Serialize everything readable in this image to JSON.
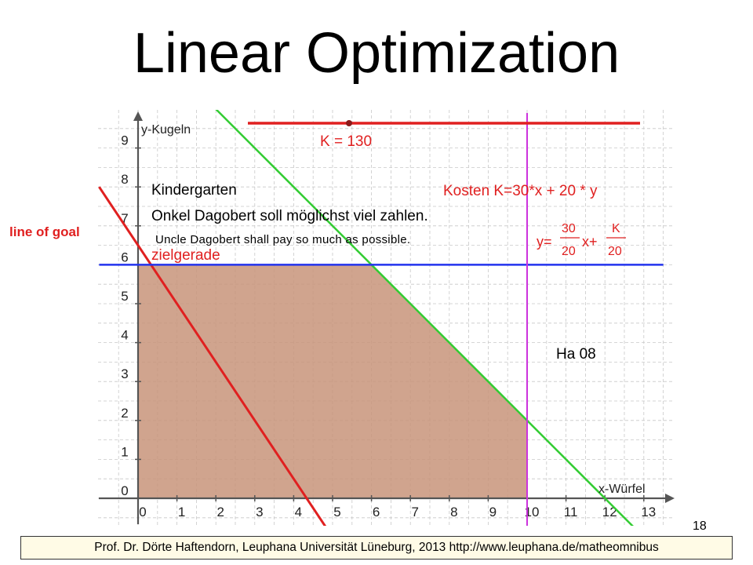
{
  "slide": {
    "title": "Linear Optimization",
    "side_label": "line of goal",
    "translation": "Uncle Dagobert shall pay so much as possible.",
    "page_number": "18",
    "footer": "Prof. Dr. Dörte Haftendorn, Leuphana Universität Lüneburg, 2013 http://www.leuphana.de/matheomnibus"
  },
  "graph": {
    "y_axis_label": "y-Kugeln",
    "x_axis_label": "x-Würfel",
    "slider_label": "K = 130",
    "heading": "Kindergarten",
    "subheading": "Onkel Dagobert soll möglichst viel zahlen.",
    "cost_formula": "Kosten K=30*x + 20 * y",
    "formula_y": "y=",
    "formula_num1": "30",
    "formula_den1": "20",
    "formula_x": "x+",
    "formula_num2": "K",
    "formula_den2": "20",
    "goal_line_label": "zielgerade",
    "author_tag": "Ha 08",
    "x_ticks": [
      "0",
      "1",
      "2",
      "3",
      "4",
      "5",
      "6",
      "7",
      "8",
      "9",
      "10",
      "11",
      "12",
      "13"
    ],
    "y_ticks": [
      "0",
      "1",
      "2",
      "3",
      "4",
      "5",
      "6",
      "7",
      "8",
      "9"
    ],
    "K": 130,
    "colors": {
      "feasible_fill": "#c8947a",
      "goal_line": "#e02020",
      "constraint_diagonal": "#33cc33",
      "constraint_horizontal": "#2233ee",
      "constraint_vertical": "#cc33dd",
      "grid": "#c8c8c8",
      "axis": "#555555"
    }
  },
  "chart_data": {
    "type": "line",
    "xlabel": "x-Würfel",
    "ylabel": "y-Kugeln",
    "xlim": [
      0,
      13
    ],
    "ylim": [
      0,
      9
    ],
    "feasible_region": [
      [
        0,
        0
      ],
      [
        10,
        0
      ],
      [
        10,
        2
      ],
      [
        6,
        6
      ],
      [
        0,
        6
      ]
    ],
    "series": [
      {
        "name": "zielgerade",
        "x": [
          -1,
          4.9
        ],
        "y": [
          8,
          -0.85
        ]
      },
      {
        "x": [
          2,
          12.9
        ],
        "y": [
          10,
          -0.9
        ]
      },
      {
        "x": [
          -1,
          13.5
        ],
        "y": [
          6,
          6
        ]
      },
      {
        "x": [
          10,
          10
        ],
        "y": [
          -0.8,
          9.9
        ]
      }
    ]
  }
}
